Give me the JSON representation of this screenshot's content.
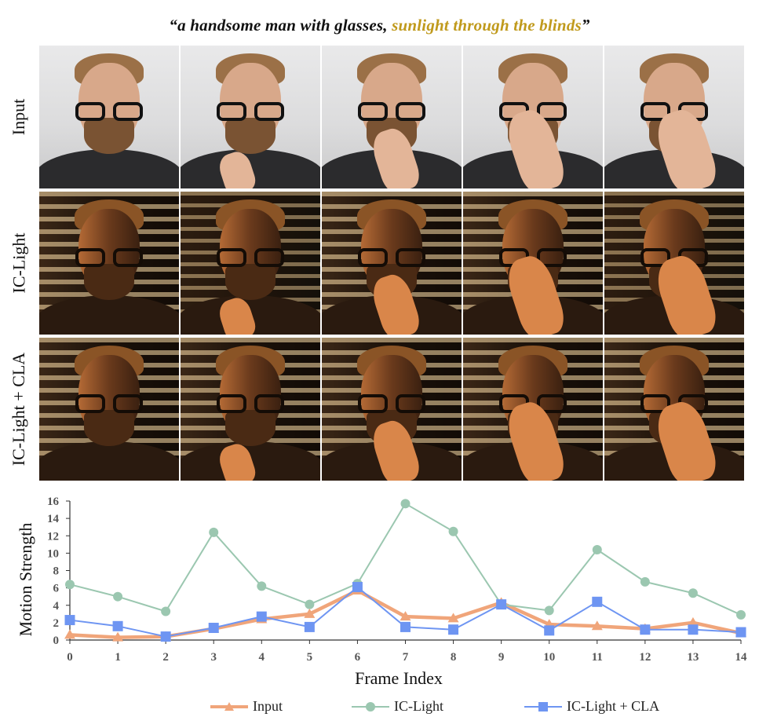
{
  "caption": {
    "quote_open": "“a  handsome man with glasses,  ",
    "highlight": "sunlight through the blinds",
    "quote_close": "”",
    "highlight_color": "#c09a1c"
  },
  "rows": [
    {
      "label": "Input"
    },
    {
      "label": "IC-Light"
    },
    {
      "label": "IC-Light + CLA"
    }
  ],
  "chart_data": {
    "type": "line",
    "xlabel": "Frame Index",
    "ylabel": "Motion Strength",
    "x": [
      0,
      1,
      2,
      3,
      4,
      5,
      6,
      7,
      8,
      9,
      10,
      11,
      12,
      13,
      14
    ],
    "ylim": [
      0,
      16
    ],
    "yticks": [
      0,
      2,
      4,
      6,
      8,
      10,
      12,
      14,
      16
    ],
    "legend_position": "bottom",
    "series": [
      {
        "name": "Input",
        "color": "#f0a57a",
        "marker": "triangle",
        "values": [
          0.6,
          0.3,
          0.4,
          1.3,
          2.4,
          3.0,
          5.7,
          2.7,
          2.5,
          4.3,
          1.8,
          1.6,
          1.3,
          2.0,
          0.8
        ]
      },
      {
        "name": "IC-Light",
        "color": "#9bc7b0",
        "marker": "circle",
        "values": [
          6.4,
          5.0,
          3.3,
          12.4,
          6.2,
          4.1,
          6.5,
          15.7,
          12.5,
          4.1,
          3.4,
          10.4,
          6.7,
          5.4,
          2.9
        ]
      },
      {
        "name": "IC-Light + CLA",
        "color": "#6e95f2",
        "marker": "square",
        "values": [
          2.3,
          1.6,
          0.4,
          1.4,
          2.7,
          1.5,
          6.1,
          1.5,
          1.2,
          4.1,
          1.1,
          4.4,
          1.2,
          1.2,
          0.9
        ]
      }
    ]
  }
}
